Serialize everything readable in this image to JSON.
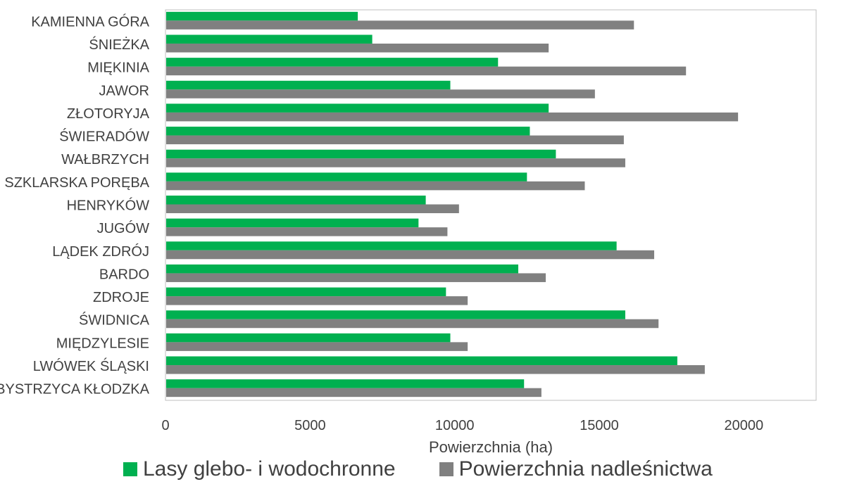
{
  "chart_data": {
    "type": "bar",
    "orientation": "horizontal",
    "categories": [
      "KAMIENNA GÓRA",
      "ŚNIEŻKA",
      "MIĘKINIA",
      "JAWOR",
      "ZŁOTORYJA",
      "ŚWIERADÓW",
      "WAŁBRZYCH",
      "SZKLARSKA PORĘBA",
      "HENRYKÓW",
      "JUGÓW",
      "LĄDEK ZDRÓJ",
      "BARDO",
      "ZDROJE",
      "ŚWIDNICA",
      "MIĘDZYLESIE",
      "LWÓWEK ŚLĄSKI",
      "BYSTRZYCA KŁODZKA"
    ],
    "series": [
      {
        "name": "Lasy glebo- i wodochronne",
        "color": "#00b050",
        "values": [
          6650,
          7150,
          11500,
          9850,
          13250,
          12600,
          13500,
          12500,
          9000,
          8750,
          15600,
          12200,
          9700,
          15900,
          9850,
          17700,
          12400
        ]
      },
      {
        "name": "Powierzchnia nadleśnictwa",
        "color": "#808080",
        "values": [
          16200,
          13250,
          18000,
          14850,
          19800,
          15850,
          15900,
          14500,
          10150,
          9750,
          16900,
          13150,
          10450,
          17050,
          10450,
          18650,
          13000
        ]
      }
    ],
    "xlabel": "Powierzchnia (ha)",
    "ylabel": "",
    "xlim": [
      0,
      22500
    ],
    "xticks": [
      0,
      5000,
      10000,
      15000,
      20000
    ],
    "grid": false,
    "legend_position": "bottom"
  }
}
